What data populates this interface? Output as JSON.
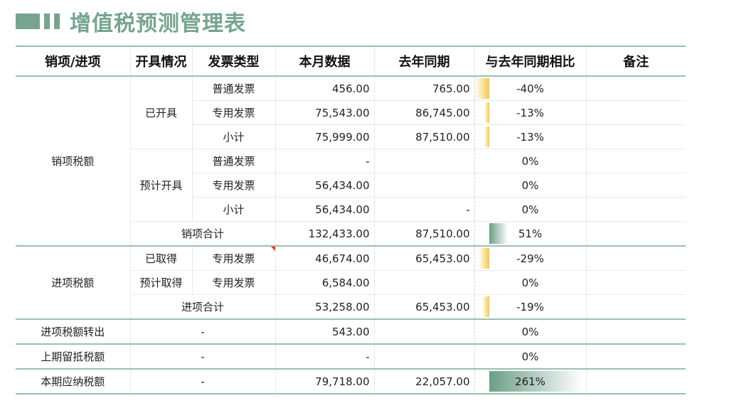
{
  "title": "增值税预测管理表",
  "headers": [
    "销项/进项",
    "开具情况",
    "发票类型",
    "本月数据",
    "去年同期",
    "与去年同期相比",
    "备注"
  ],
  "rows": [
    {
      "cat": "销项税额",
      "status": "已开具",
      "type": "普通发票",
      "current": "456.00",
      "last": "765.00",
      "pct": "-40%",
      "value": -40
    },
    {
      "type": "专用发票",
      "current": "75,543.00",
      "last": "86,745.00",
      "pct": "-13%",
      "value": -13
    },
    {
      "type": "小计",
      "current": "75,999.00",
      "last": "87,510.00",
      "pct": "-13%",
      "value": -13
    },
    {
      "status": "预计开具",
      "type": "普通发票",
      "current": "-",
      "last": "",
      "pct": "0%",
      "value": 0
    },
    {
      "type": "专用发票",
      "current": "56,434.00",
      "last": "",
      "pct": "0%",
      "value": 0
    },
    {
      "type": "小计",
      "current": "56,434.00",
      "last": "-",
      "pct": "0%",
      "value": 0
    },
    {
      "label": "销项合计",
      "current": "132,433.00",
      "last": "87,510.00",
      "pct": "51%",
      "value": 51
    },
    {
      "cat": "进项税额",
      "status": "已取得",
      "type": "专用发票",
      "current": "46,674.00",
      "last": "65,453.00",
      "pct": "-29%",
      "value": -29
    },
    {
      "status": "预计取得",
      "type": "专用发票",
      "current": "6,584.00",
      "last": "",
      "pct": "0%",
      "value": 0
    },
    {
      "label": "进项合计",
      "current": "53,258.00",
      "last": "65,453.00",
      "pct": "-19%",
      "value": -19
    },
    {
      "cat": "进项税额转出",
      "label": "-",
      "current": "543.00",
      "last": "",
      "pct": "0%",
      "value": 0
    },
    {
      "cat": "上期留抵税额",
      "label": "-",
      "current": "-",
      "last": "",
      "pct": "0%",
      "value": 0
    },
    {
      "cat": "本期应纳税额",
      "label": "-",
      "current": "79,718.00",
      "last": "22,057.00",
      "pct": "261%",
      "value": 261
    }
  ],
  "colors": {
    "accent": "#76a48e",
    "negative_bar": "#f2c94c",
    "positive_bar": "#6c9e86"
  }
}
